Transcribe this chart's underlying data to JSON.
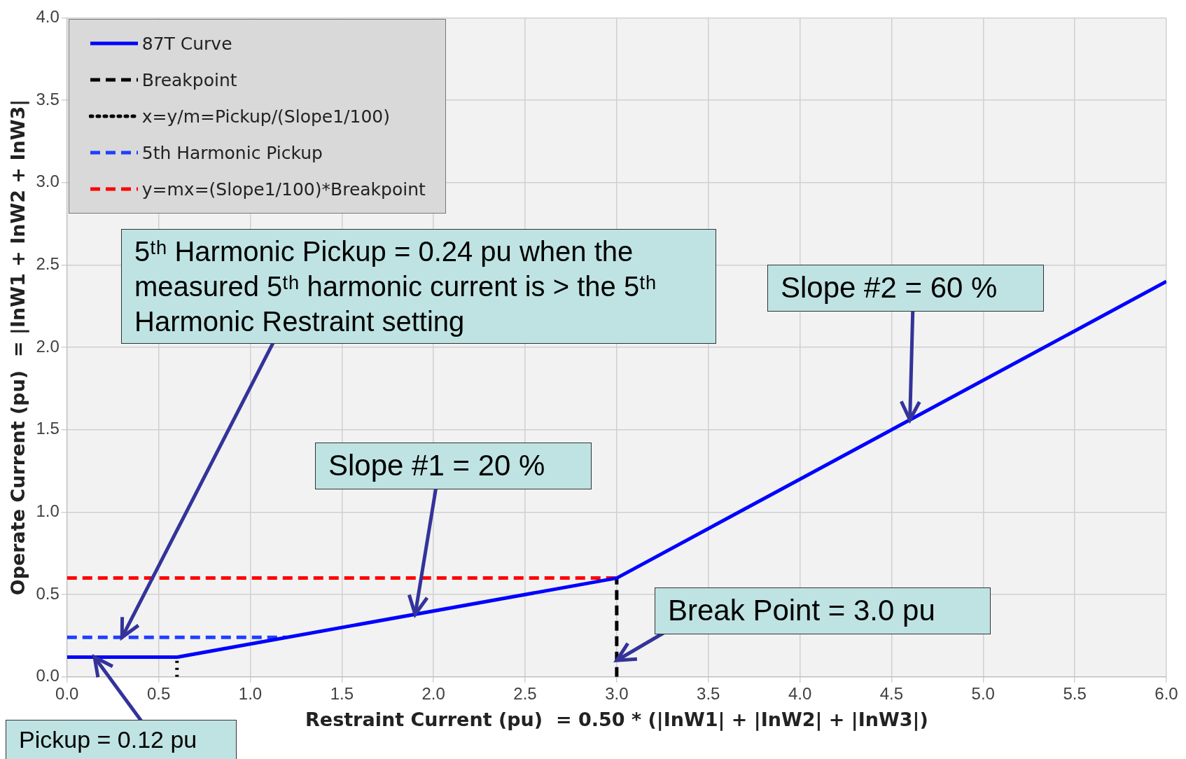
{
  "chart_data": {
    "type": "line",
    "xlabel": "Restraint Current (pu)  = 0.50 * (|InW1| + |InW2| + |InW3|)",
    "ylabel": "Operate Current (pu)  = |InW1 + InW2 + InW3|",
    "xlim": [
      0,
      6
    ],
    "xticks": [
      {
        "value": 0,
        "label": "0.0"
      },
      {
        "value": 0.5,
        "label": "0.5"
      },
      {
        "value": 1,
        "label": "1.0"
      },
      {
        "value": 1.5,
        "label": "1.5"
      },
      {
        "value": 2,
        "label": "2.0"
      },
      {
        "value": 2.5,
        "label": "2.5"
      },
      {
        "value": 3,
        "label": "3.0"
      },
      {
        "value": 3.5,
        "label": "3.5"
      },
      {
        "value": 4,
        "label": "4.0"
      },
      {
        "value": 4.5,
        "label": "4.5"
      },
      {
        "value": 5,
        "label": "5.0"
      },
      {
        "value": 5.5,
        "label": "5.5"
      },
      {
        "value": 6,
        "label": "6.0"
      }
    ],
    "ylim": [
      0,
      4
    ],
    "yticks": [
      {
        "value": 0,
        "label": "0.0"
      },
      {
        "value": 0.5,
        "label": "0.5"
      },
      {
        "value": 1,
        "label": "1.0"
      },
      {
        "value": 1.5,
        "label": "1.5"
      },
      {
        "value": 2,
        "label": "2.0"
      },
      {
        "value": 2.5,
        "label": "2.5"
      },
      {
        "value": 3,
        "label": "3.0"
      },
      {
        "value": 3.5,
        "label": "3.5"
      },
      {
        "value": 4,
        "label": "4.0"
      }
    ],
    "grid": true,
    "legend": "top left",
    "marker": "none",
    "series": [
      {
        "name": "87T Curve",
        "color": "#0000ff",
        "line_style": "solid",
        "x": [
          0,
          0.6,
          3,
          6
        ],
        "values": [
          0.12,
          0.12,
          0.6,
          2.4
        ]
      },
      {
        "name": "Breakpoint",
        "color": "#000000",
        "line_style": "dashed",
        "x": [
          3,
          3
        ],
        "values": [
          0,
          0.6
        ]
      },
      {
        "name": "x=y/m=Pickup/(Slope1/100)",
        "color": "#000000",
        "line_style": "dotted",
        "x": [
          0.6,
          0.6
        ],
        "values": [
          0,
          0.12
        ]
      },
      {
        "name": "5th Harmonic Pickup",
        "color": "#1f3fff",
        "line_style": "dashed",
        "x": [
          0,
          1.2
        ],
        "values": [
          0.24,
          0.24
        ]
      },
      {
        "name": "y=mx=(Slope1/100)*Breakpoint",
        "color": "#ff0000",
        "line_style": "dashed",
        "x": [
          0,
          3
        ],
        "values": [
          0.6,
          0.6
        ]
      }
    ],
    "annotations": [
      {
        "text": "5ᵗʰ Harmonic Pickup = 0.24 pu when the measured 5ᵗʰ harmonic current is > the 5ᵗʰ Harmonic Restraint setting",
        "x": 0.3,
        "y": 0.24
      },
      {
        "text": "Slope #1 = 20 %",
        "x": 1.9,
        "y": 0.38
      },
      {
        "text": "Slope #2 = 60 %",
        "x": 4.6,
        "y": 1.56
      },
      {
        "text": "Break Point = 3.0 pu",
        "x": 3.0,
        "y": 0.1
      },
      {
        "text": "Pickup = 0.12 pu",
        "x": 0.15,
        "y": 0.12
      }
    ]
  }
}
